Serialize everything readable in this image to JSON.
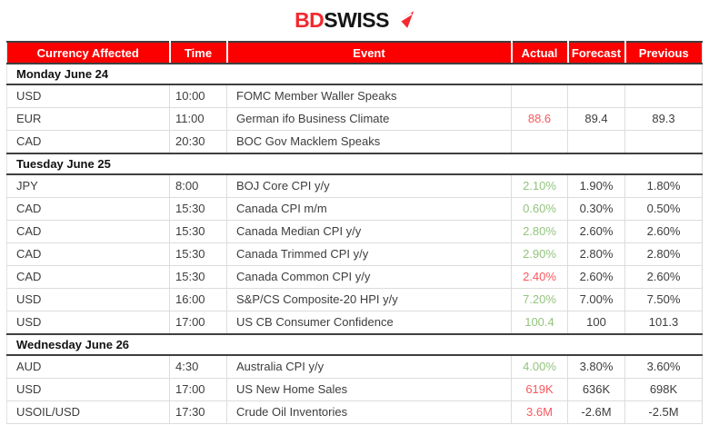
{
  "brand": {
    "bd": "BD",
    "swiss": "SWISS"
  },
  "colors": {
    "header_bg": "#fc0000",
    "header_text": "#ffffff",
    "better": "#93c47d",
    "worse": "#f8585d",
    "logo_red": "#f3292e",
    "logo_black": "#151515"
  },
  "table": {
    "columns": [
      {
        "key": "currency",
        "label": "Currency Affected"
      },
      {
        "key": "time",
        "label": "Time"
      },
      {
        "key": "event",
        "label": "Event"
      },
      {
        "key": "actual",
        "label": "Actual"
      },
      {
        "key": "forecast",
        "label": "Forecast"
      },
      {
        "key": "previous",
        "label": "Previous"
      }
    ],
    "days": [
      {
        "label": "Monday June 24",
        "rows": [
          {
            "currency": "USD",
            "time": "10:00",
            "event": "FOMC Member Waller Speaks",
            "actual": "",
            "forecast": "",
            "previous": "",
            "actual_color": ""
          },
          {
            "currency": "EUR",
            "time": "11:00",
            "event": "German ifo Business Climate",
            "actual": "88.6",
            "forecast": "89.4",
            "previous": "89.3",
            "actual_color": "worse"
          },
          {
            "currency": "CAD",
            "time": "20:30",
            "event": "BOC Gov Macklem Speaks",
            "actual": "",
            "forecast": "",
            "previous": "",
            "actual_color": ""
          }
        ]
      },
      {
        "label": "Tuesday June 25",
        "rows": [
          {
            "currency": "JPY",
            "time": "8:00",
            "event": "BOJ Core CPI y/y",
            "actual": "2.10%",
            "forecast": "1.90%",
            "previous": "1.80%",
            "actual_color": "better"
          },
          {
            "currency": "CAD",
            "time": "15:30",
            "event": "Canada CPI m/m",
            "actual": "0.60%",
            "forecast": "0.30%",
            "previous": "0.50%",
            "actual_color": "better"
          },
          {
            "currency": "CAD",
            "time": "15:30",
            "event": "Canada Median CPI y/y",
            "actual": "2.80%",
            "forecast": "2.60%",
            "previous": "2.60%",
            "actual_color": "better"
          },
          {
            "currency": "CAD",
            "time": "15:30",
            "event": "Canada Trimmed CPI y/y",
            "actual": "2.90%",
            "forecast": "2.80%",
            "previous": "2.80%",
            "actual_color": "better"
          },
          {
            "currency": "CAD",
            "time": "15:30",
            "event": "Canada Common CPI y/y",
            "actual": "2.40%",
            "forecast": "2.60%",
            "previous": "2.60%",
            "actual_color": "worse"
          },
          {
            "currency": "USD",
            "time": "16:00",
            "event": "S&P/CS Composite-20 HPI y/y",
            "actual": "7.20%",
            "forecast": "7.00%",
            "previous": "7.50%",
            "actual_color": "better"
          },
          {
            "currency": "USD",
            "time": "17:00",
            "event": "US CB Consumer Confidence",
            "actual": "100.4",
            "forecast": "100",
            "previous": "101.3",
            "actual_color": "better"
          }
        ]
      },
      {
        "label": "Wednesday June 26",
        "rows": [
          {
            "currency": "AUD",
            "time": "4:30",
            "event": "Australia CPI y/y",
            "actual": "4.00%",
            "forecast": "3.80%",
            "previous": "3.60%",
            "actual_color": "better"
          },
          {
            "currency": "USD",
            "time": "17:00",
            "event": "US New Home Sales",
            "actual": "619K",
            "forecast": "636K",
            "previous": "698K",
            "actual_color": "worse"
          },
          {
            "currency": "USOIL/USD",
            "time": "17:30",
            "event": "Crude Oil Inventories",
            "actual": "3.6M",
            "forecast": "-2.6M",
            "previous": "-2.5M",
            "actual_color": "worse"
          }
        ]
      }
    ]
  }
}
